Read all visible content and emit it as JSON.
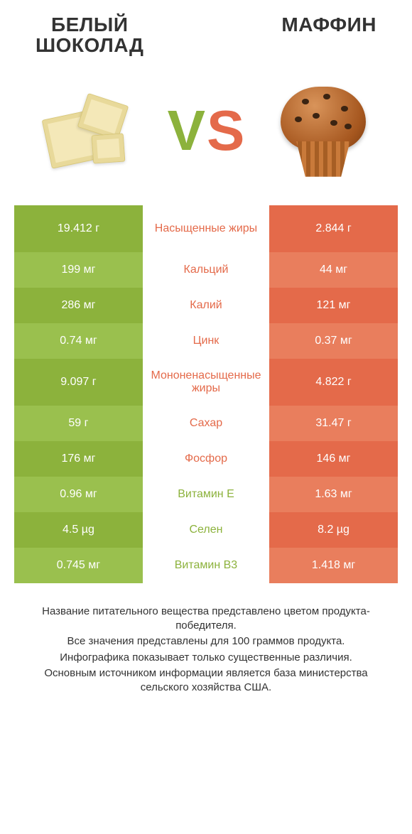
{
  "titles": {
    "left": "БЕЛЫЙ\nШОКОЛАД",
    "right": "МАФФИН"
  },
  "vs": {
    "v": "V",
    "s": "S"
  },
  "colors": {
    "left": {
      "main": "#8cb23c",
      "alt": "#9ac04e"
    },
    "right": {
      "main": "#e46a4a",
      "alt": "#e97e5d"
    },
    "mid_left_text": "#e46a4a",
    "mid_right_text": "#8cb23c",
    "title_text": "#333333",
    "footer_text": "#333333",
    "background": "#ffffff"
  },
  "row_height_tall": 66,
  "row_height_short": 50,
  "font": {
    "title_size": 28,
    "cell_size": 16,
    "vs_size": 80,
    "footer_size": 15
  },
  "rows": [
    {
      "left": "19.412 г",
      "label": "Насыщенные жиры",
      "right": "2.844 г",
      "winner": "left",
      "tall": true
    },
    {
      "left": "199 мг",
      "label": "Кальций",
      "right": "44 мг",
      "winner": "left",
      "tall": false
    },
    {
      "left": "286 мг",
      "label": "Калий",
      "right": "121 мг",
      "winner": "left",
      "tall": false
    },
    {
      "left": "0.74 мг",
      "label": "Цинк",
      "right": "0.37 мг",
      "winner": "left",
      "tall": false
    },
    {
      "left": "9.097 г",
      "label": "Мононенасыщенные жиры",
      "right": "4.822 г",
      "winner": "left",
      "tall": true
    },
    {
      "left": "59 г",
      "label": "Сахар",
      "right": "31.47 г",
      "winner": "left",
      "tall": false
    },
    {
      "left": "176 мг",
      "label": "Фосфор",
      "right": "146 мг",
      "winner": "left",
      "tall": false
    },
    {
      "left": "0.96 мг",
      "label": "Витамин E",
      "right": "1.63 мг",
      "winner": "right",
      "tall": false
    },
    {
      "left": "4.5 µg",
      "label": "Селен",
      "right": "8.2 µg",
      "winner": "right",
      "tall": false
    },
    {
      "left": "0.745 мг",
      "label": "Витамин B3",
      "right": "1.418 мг",
      "winner": "right",
      "tall": false
    }
  ],
  "footer": [
    "Название питательного вещества представлено цветом продукта-победителя.",
    "Все значения представлены для 100 граммов продукта.",
    "Инфографика показывает только существенные различия.",
    "Основным источником информации является база министерства сельского хозяйства США."
  ]
}
